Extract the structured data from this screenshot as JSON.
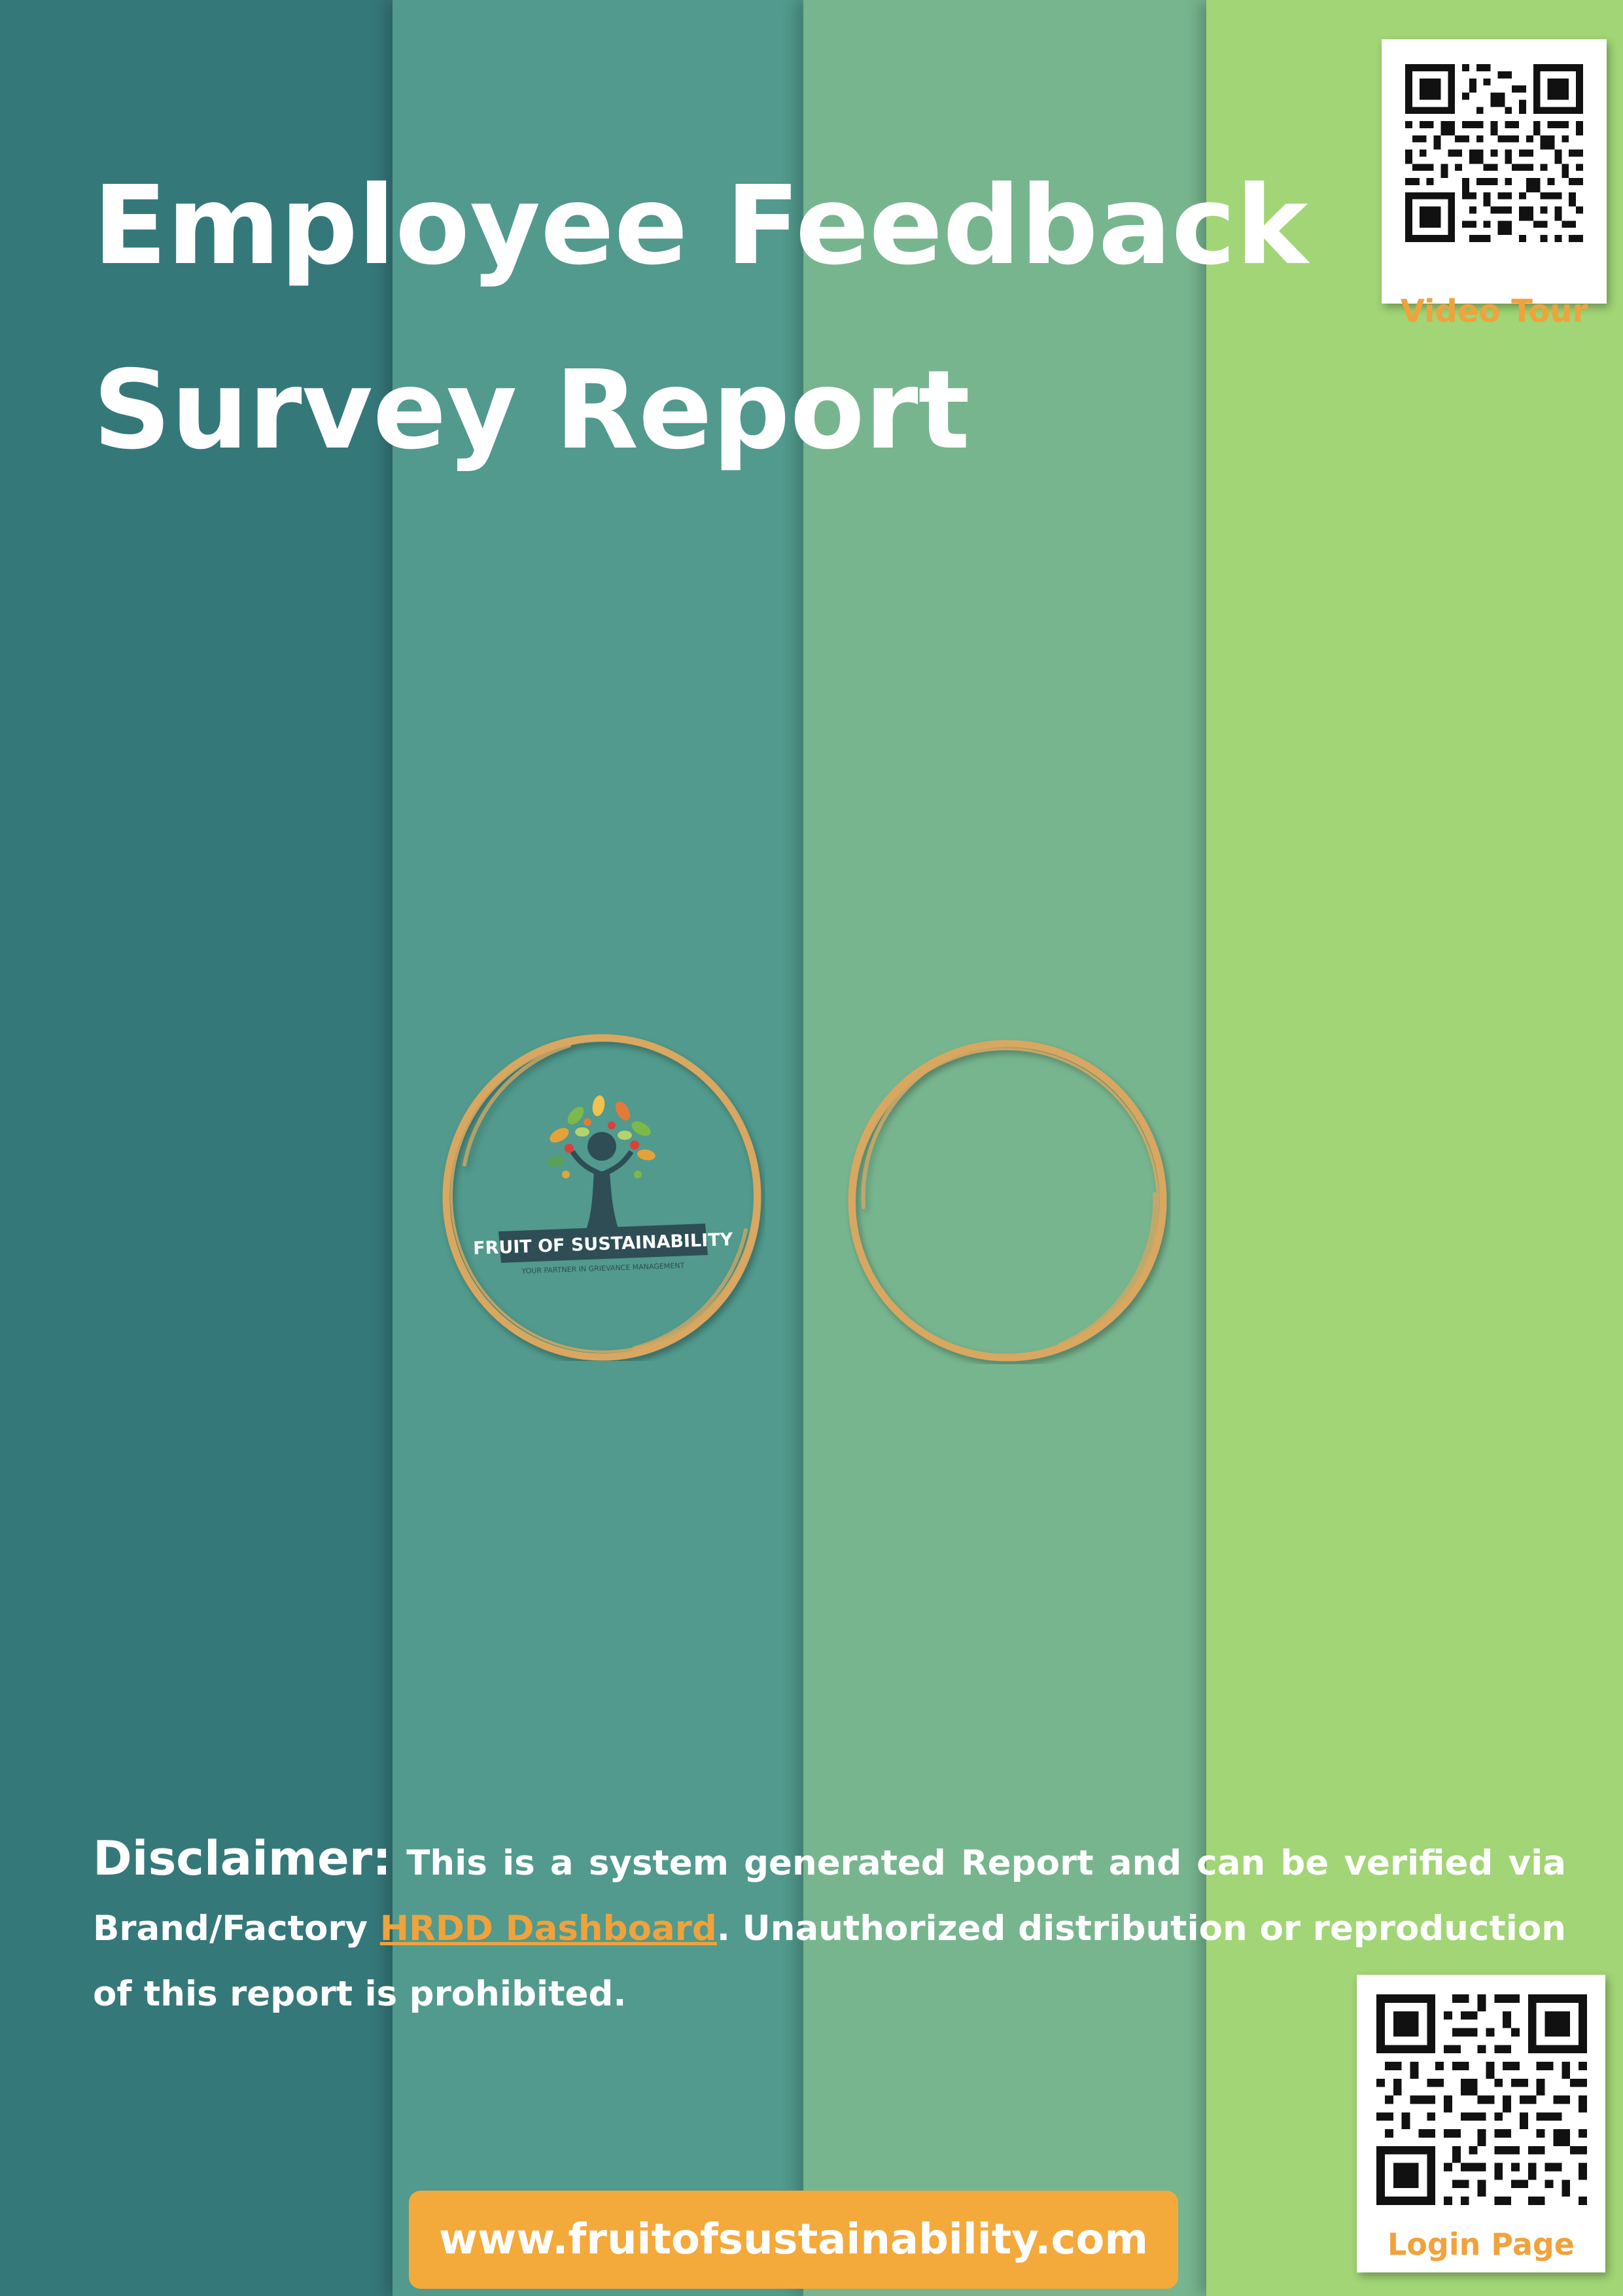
{
  "report": {
    "title_line_1": "Employee Feedback",
    "title_line_2": "Survey Report"
  },
  "qr_codes": {
    "top": {
      "label": "Video Tour",
      "icon": "qr-code-icon"
    },
    "bottom": {
      "label": "Login Page",
      "icon": "qr-code-icon"
    }
  },
  "logo": {
    "brand_name": "FRUIT OF SUSTAINABILITY",
    "tagline": "YOUR PARTNER IN GRIEVANCE MANAGEMENT",
    "icon": "tree-logo-icon"
  },
  "disclaimer": {
    "label": "Disclaimer:",
    "text_before_link": "This is a system generated Report and can be verified via Brand/Factory ",
    "link_text": "HRDD Dashboard",
    "text_after_link": ". Unauthorized distribution or reproduction of this report is prohibited."
  },
  "footer": {
    "website": "www.fruitofsustainability.com"
  },
  "colors": {
    "band_1": "#35787a",
    "band_2": "#519a8d",
    "band_3": "#77b58f",
    "band_4": "#a1d575",
    "accent_orange": "#f4a93b",
    "ring_gold": "#d9a760"
  }
}
